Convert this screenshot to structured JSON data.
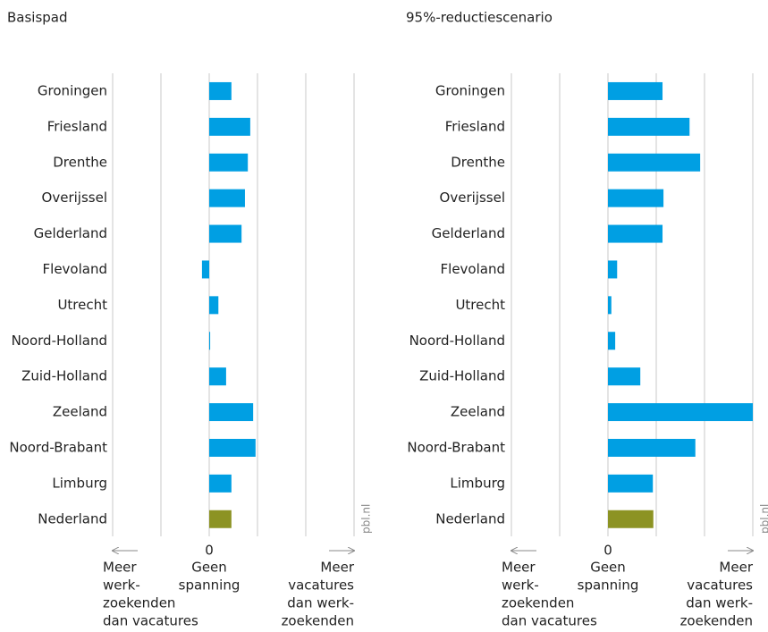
{
  "chart_data": [
    {
      "type": "bar",
      "orientation": "horizontal",
      "title": "Basispad",
      "categories": [
        "Groningen",
        "Friesland",
        "Drenthe",
        "Overijssel",
        "Gelderland",
        "Flevoland",
        "Utrecht",
        "Noord-Holland",
        "Zuid-Holland",
        "Zeeland",
        "Noord-Brabant",
        "Limburg",
        "Nederland"
      ],
      "values": [
        0.46,
        0.85,
        0.8,
        0.74,
        0.67,
        -0.15,
        0.19,
        0.02,
        0.35,
        0.91,
        0.96,
        0.46,
        0.46
      ],
      "colors": [
        "#009fe3",
        "#009fe3",
        "#009fe3",
        "#009fe3",
        "#009fe3",
        "#009fe3",
        "#009fe3",
        "#009fe3",
        "#009fe3",
        "#009fe3",
        "#009fe3",
        "#009fe3",
        "#8c9323"
      ],
      "xlim": [
        -2,
        3
      ],
      "xticks": [
        {
          "value": -2,
          "label": null
        },
        {
          "value": -1,
          "label": null
        },
        0,
        {
          "value": 1,
          "label": null
        },
        {
          "value": 2,
          "label": null
        },
        {
          "value": 3,
          "label": null
        }
      ],
      "grid": true,
      "left_note": [
        "Meer",
        "werk-",
        "zoekenden",
        "dan vacatures"
      ],
      "center_note": [
        "Geen",
        "spanning"
      ],
      "right_note": [
        "Meer",
        "vacatures",
        "dan werk-",
        "zoekenden"
      ],
      "source": "pbl.nl"
    },
    {
      "type": "bar",
      "orientation": "horizontal",
      "title": "95%-reductiescenario",
      "categories": [
        "Groningen",
        "Friesland",
        "Drenthe",
        "Overijssel",
        "Gelderland",
        "Flevoland",
        "Utrecht",
        "Noord-Holland",
        "Zuid-Holland",
        "Zeeland",
        "Noord-Brabant",
        "Limburg",
        "Nederland"
      ],
      "values": [
        1.13,
        1.69,
        1.91,
        1.15,
        1.13,
        0.19,
        0.07,
        0.15,
        0.67,
        3.0,
        1.81,
        0.93,
        0.94
      ],
      "colors": [
        "#009fe3",
        "#009fe3",
        "#009fe3",
        "#009fe3",
        "#009fe3",
        "#009fe3",
        "#009fe3",
        "#009fe3",
        "#009fe3",
        "#009fe3",
        "#009fe3",
        "#009fe3",
        "#8c9323"
      ],
      "xlim": [
        -2,
        3
      ],
      "xticks": [
        {
          "value": -2,
          "label": null
        },
        {
          "value": -1,
          "label": null
        },
        0,
        {
          "value": 1,
          "label": null
        },
        {
          "value": 2,
          "label": null
        },
        {
          "value": 3,
          "label": null
        }
      ],
      "grid": true,
      "left_note": [
        "Meer",
        "werk-",
        "zoekenden",
        "dan vacatures"
      ],
      "center_note": [
        "Geen",
        "spanning"
      ],
      "right_note": [
        "Meer",
        "vacatures",
        "dan werk-",
        "zoekenden"
      ],
      "source": "pbl.nl"
    }
  ]
}
